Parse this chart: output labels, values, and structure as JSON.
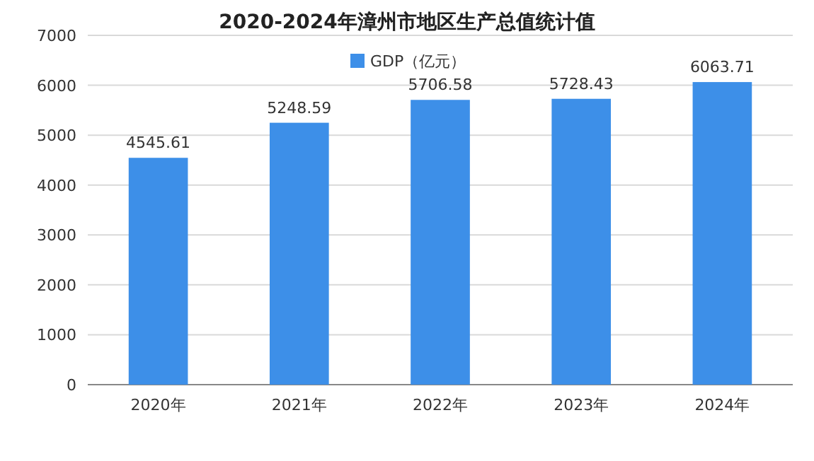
{
  "chart_data": {
    "type": "bar",
    "title": "2020-2024年漳州市地区生产总值统计值",
    "categories": [
      "2020年",
      "2021年",
      "2022年",
      "2023年",
      "2024年"
    ],
    "series": [
      {
        "name": "GDP（亿元）",
        "color": "#3d8fe8",
        "values": [
          4545.61,
          5248.59,
          5706.58,
          5728.43,
          6063.71
        ]
      }
    ],
    "ylim": [
      0,
      7000
    ],
    "yticks": [
      0,
      1000,
      2000,
      3000,
      4000,
      5000,
      6000,
      7000
    ],
    "grid": "y",
    "legend": "top",
    "data_labels": true
  }
}
